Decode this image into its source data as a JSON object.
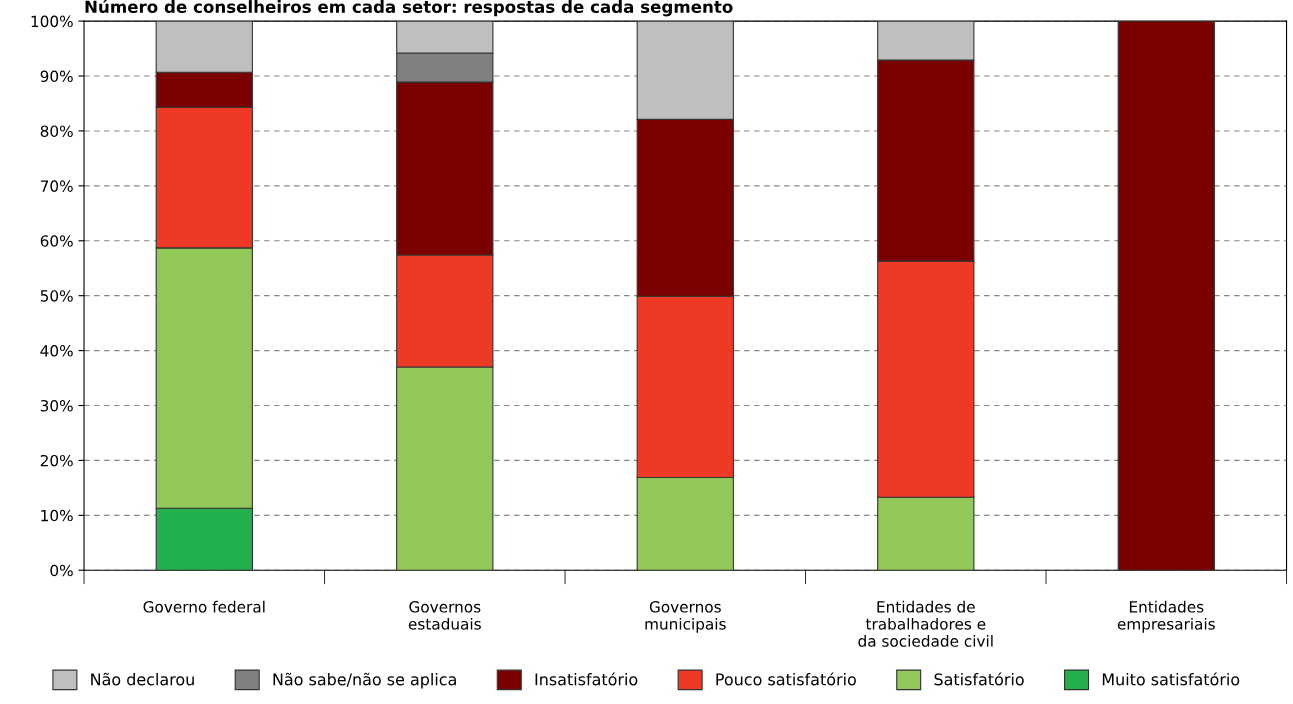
{
  "chart_data": {
    "type": "bar",
    "stacked": true,
    "title": "Número de conselheiros em cada setor: respostas de cada segmento",
    "categories": [
      "Governo federal",
      "Governos\nestaduais",
      "Governos\nmunicipais",
      "Entidades de\ntrabalhadores e\nda sociedade civil",
      "Entidades\nempresariais"
    ],
    "series": [
      {
        "name": "Muito satisfatório",
        "color": "#22b14c",
        "values": [
          11.3,
          null,
          null,
          null,
          null
        ]
      },
      {
        "name": "Satisfatório",
        "color": "#92c85a",
        "values": [
          47.4,
          37.0,
          16.9,
          13.3,
          null
        ]
      },
      {
        "name": "Pouco satisfatório",
        "color": "#ee3a24",
        "values": [
          25.6,
          20.4,
          33.0,
          43.0,
          null
        ]
      },
      {
        "name": "Insatisfatório",
        "color": "#7b0000",
        "values": [
          6.4,
          31.5,
          32.2,
          36.6,
          100
        ]
      },
      {
        "name": "Não sabe/não se aplica",
        "color": "#808080",
        "values": [
          null,
          5.3,
          null,
          null,
          null
        ]
      },
      {
        "name": "Não declarou",
        "color": "#bfbfbf",
        "values": [
          9.3,
          5.8,
          17.9,
          7.1,
          null
        ]
      }
    ],
    "ylim": [
      0,
      100
    ],
    "yticks": [
      {
        "value": 0,
        "label": "0%"
      },
      {
        "value": 10,
        "label": "10%"
      },
      {
        "value": 20,
        "label": "20%"
      },
      {
        "value": 30,
        "label": "30%"
      },
      {
        "value": 40,
        "label": "40%"
      },
      {
        "value": 50,
        "label": "50%"
      },
      {
        "value": 60,
        "label": "60%"
      },
      {
        "value": 70,
        "label": "70%"
      },
      {
        "value": 80,
        "label": "80%"
      },
      {
        "value": 90,
        "label": "90%"
      },
      {
        "value": 100,
        "label": "100%"
      }
    ],
    "grid": "y",
    "legend": "bottom"
  }
}
